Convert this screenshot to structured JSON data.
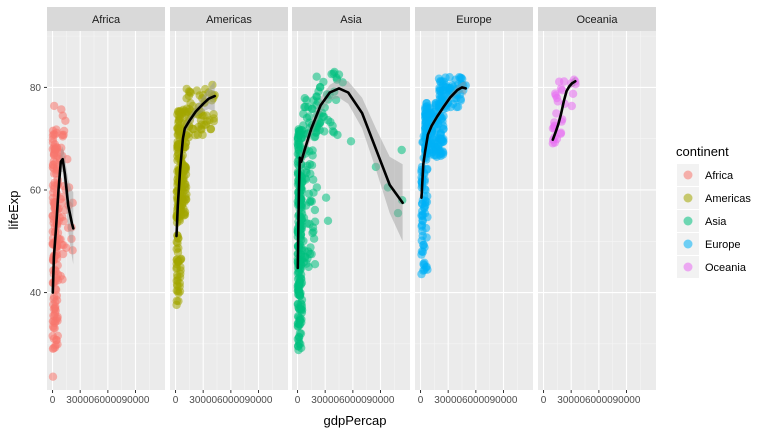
{
  "chart_data": {
    "type": "scatter",
    "title": "",
    "xlabel": "gdpPercap",
    "ylabel": "lifeExp",
    "xlim": [
      -6000,
      122000
    ],
    "ylim": [
      21,
      91
    ],
    "x_ticks": [
      0,
      30000,
      60000,
      90000
    ],
    "x_tick_labels": [
      "0",
      "30000",
      "60000",
      "90000"
    ],
    "y_ticks": [
      40,
      60,
      80
    ],
    "y_tick_labels": [
      "40",
      "60",
      "80"
    ],
    "grid": true,
    "legend": {
      "title": "continent",
      "placement": "right"
    },
    "facets": [
      {
        "name": "Africa",
        "color": "#F8766D",
        "clusters": [
          {
            "x": [
              200,
              6000
            ],
            "y": [
              29,
              72
            ],
            "n": 130
          },
          {
            "x": [
              4000,
              12000
            ],
            "y": [
              42,
              76
            ],
            "n": 30
          },
          {
            "x": [
              8000,
              22000
            ],
            "y": [
              47,
              73
            ],
            "n": 18
          }
        ],
        "extra_points": [
          [
            500,
            23.6
          ],
          [
            21900,
            57.5
          ],
          [
            20600,
            52.7
          ],
          [
            12500,
            71.5
          ],
          [
            14000,
            73.5
          ],
          [
            1800,
            76.4
          ],
          [
            16000,
            66
          ],
          [
            18000,
            60.5
          ]
        ],
        "smooth": [
          [
            300,
            40
          ],
          [
            1500,
            47
          ],
          [
            4000,
            53
          ],
          [
            6500,
            60
          ],
          [
            9000,
            65.5
          ],
          [
            11000,
            66
          ],
          [
            13500,
            63
          ],
          [
            17000,
            57
          ],
          [
            21000,
            53.5
          ],
          [
            22500,
            52.5
          ]
        ],
        "band": [
          [
            300,
            36,
            44
          ],
          [
            1500,
            45.5,
            48.5
          ],
          [
            4000,
            51.5,
            54.5
          ],
          [
            6500,
            58,
            62
          ],
          [
            9000,
            63.5,
            67.5
          ],
          [
            11000,
            63.5,
            68.5
          ],
          [
            13500,
            59.5,
            66.5
          ],
          [
            17000,
            52,
            62
          ],
          [
            21000,
            47,
            60
          ],
          [
            22500,
            45.5,
            59.5
          ]
        ]
      },
      {
        "name": "Americas",
        "color": "#A3A500",
        "clusters": [
          {
            "x": [
              1200,
              6000
            ],
            "y": [
              38,
              60
            ],
            "n": 60
          },
          {
            "x": [
              2000,
              12000
            ],
            "y": [
              55,
              76
            ],
            "n": 150
          },
          {
            "x": [
              12000,
              42000
            ],
            "y": [
              70,
              80
            ],
            "n": 60
          }
        ],
        "extra_points": [
          [
            1200,
            37.6
          ],
          [
            42500,
            78.5
          ],
          [
            40000,
            80.5
          ],
          [
            36000,
            79
          ],
          [
            30000,
            78.5
          ],
          [
            5000,
            43
          ],
          [
            3000,
            46
          ]
        ],
        "smooth": [
          [
            1000,
            51
          ],
          [
            2500,
            57
          ],
          [
            5000,
            64
          ],
          [
            8000,
            70
          ],
          [
            10000,
            72
          ],
          [
            15000,
            73.5
          ],
          [
            22000,
            75.3
          ],
          [
            30000,
            76.8
          ],
          [
            36000,
            77.8
          ],
          [
            42500,
            78.3
          ]
        ],
        "band": [
          [
            1000,
            49,
            53
          ],
          [
            2500,
            55.5,
            58.5
          ],
          [
            5000,
            63,
            65
          ],
          [
            8000,
            69,
            71
          ],
          [
            10000,
            71,
            73
          ],
          [
            15000,
            72.5,
            74.5
          ],
          [
            22000,
            74.3,
            76.3
          ],
          [
            30000,
            75.3,
            78.3
          ],
          [
            36000,
            75.8,
            79.8
          ],
          [
            42500,
            75.3,
            81.3
          ]
        ]
      },
      {
        "name": "Asia",
        "color": "#00BF7D",
        "clusters": [
          {
            "x": [
              300,
              5000
            ],
            "y": [
              29,
              72
            ],
            "n": 190
          },
          {
            "x": [
              3000,
              20000
            ],
            "y": [
              45,
              78
            ],
            "n": 80
          },
          {
            "x": [
              20000,
              45000
            ],
            "y": [
              70,
              83
            ],
            "n": 40
          }
        ],
        "extra_points": [
          [
            113000,
            67.8
          ],
          [
            109000,
            55.5
          ],
          [
            113500,
            58
          ],
          [
            98000,
            60.5
          ],
          [
            85000,
            64.5
          ],
          [
            58000,
            69.5
          ],
          [
            33000,
            54
          ],
          [
            31000,
            58.5
          ],
          [
            21000,
            60.5
          ],
          [
            17000,
            62
          ],
          [
            18000,
            50.5
          ],
          [
            8000,
            47
          ],
          [
            12000,
            45
          ],
          [
            1000,
            28.8
          ],
          [
            1500,
            30.5
          ],
          [
            45000,
            82.5
          ],
          [
            40000,
            83
          ],
          [
            37000,
            82.6
          ],
          [
            49000,
            81
          ]
        ],
        "smooth": [
          [
            300,
            44.8
          ],
          [
            1500,
            60
          ],
          [
            2500,
            66.3
          ],
          [
            4000,
            65.5
          ],
          [
            8000,
            68
          ],
          [
            15000,
            72
          ],
          [
            25000,
            76.5
          ],
          [
            35000,
            79
          ],
          [
            45000,
            79.8
          ],
          [
            55000,
            79
          ],
          [
            70000,
            75
          ],
          [
            85000,
            68
          ],
          [
            100000,
            61
          ],
          [
            114000,
            57.5
          ]
        ],
        "band": [
          [
            300,
            42.5,
            47
          ],
          [
            1500,
            58.5,
            61.5
          ],
          [
            2500,
            65,
            67.6
          ],
          [
            4000,
            64,
            67
          ],
          [
            8000,
            66.5,
            69.5
          ],
          [
            15000,
            70.5,
            73.5
          ],
          [
            25000,
            75,
            78
          ],
          [
            35000,
            77.5,
            80.5
          ],
          [
            45000,
            78,
            81.6
          ],
          [
            55000,
            76.8,
            81.2
          ],
          [
            70000,
            72,
            78
          ],
          [
            85000,
            64,
            72
          ],
          [
            100000,
            55.5,
            66.5
          ],
          [
            114000,
            50,
            65
          ]
        ]
      },
      {
        "name": "Europe",
        "color": "#00B0F6",
        "clusters": [
          {
            "x": [
              1000,
              8000
            ],
            "y": [
              44,
              72
            ],
            "n": 60
          },
          {
            "x": [
              5000,
              25000
            ],
            "y": [
              66,
              77
            ],
            "n": 150
          },
          {
            "x": [
              20000,
              48000
            ],
            "y": [
              76,
              82
            ],
            "n": 70
          }
        ],
        "extra_points": [
          [
            1000,
            43.6
          ],
          [
            1500,
            48
          ],
          [
            2000,
            52
          ],
          [
            1000,
            55
          ],
          [
            2500,
            58
          ],
          [
            45000,
            80.5
          ],
          [
            49000,
            80.4
          ],
          [
            42000,
            82
          ],
          [
            38000,
            81.5
          ]
        ],
        "smooth": [
          [
            1000,
            58.5
          ],
          [
            3000,
            65
          ],
          [
            5000,
            67.5
          ],
          [
            8000,
            70.8
          ],
          [
            12000,
            72.5
          ],
          [
            18000,
            74.3
          ],
          [
            25000,
            76.2
          ],
          [
            32000,
            78
          ],
          [
            40000,
            79.5
          ],
          [
            45000,
            80
          ],
          [
            49000,
            79.8
          ]
        ],
        "band": [
          [
            1000,
            57,
            60
          ],
          [
            3000,
            64,
            66
          ],
          [
            5000,
            66.7,
            68.3
          ],
          [
            8000,
            70.1,
            71.5
          ],
          [
            12000,
            71.8,
            73.2
          ],
          [
            18000,
            73.7,
            74.9
          ],
          [
            25000,
            75.6,
            76.8
          ],
          [
            32000,
            77.3,
            78.7
          ],
          [
            40000,
            78.7,
            80.3
          ],
          [
            45000,
            79,
            81
          ],
          [
            49000,
            78.4,
            81.2
          ]
        ]
      },
      {
        "name": "Oceania",
        "color": "#E76BF3",
        "clusters": [
          {
            "x": [
              10000,
              35000
            ],
            "y": [
              69,
              81.5
            ],
            "n": 24
          }
        ],
        "extra_points": [
          [
            10000,
            69.1
          ],
          [
            10500,
            69.8
          ],
          [
            12000,
            70.3
          ],
          [
            34500,
            81.2
          ],
          [
            33000,
            81.5
          ],
          [
            30000,
            80.8
          ]
        ],
        "smooth": [
          [
            10000,
            69.8
          ],
          [
            13000,
            71.2
          ],
          [
            16000,
            72.8
          ],
          [
            19000,
            74.8
          ],
          [
            22000,
            77.3
          ],
          [
            25000,
            79.3
          ],
          [
            28000,
            80.2
          ],
          [
            31000,
            80.8
          ],
          [
            34500,
            81.2
          ]
        ],
        "band": [
          [
            10000,
            69.2,
            70.4
          ],
          [
            13000,
            70.7,
            71.7
          ],
          [
            16000,
            72.3,
            73.3
          ],
          [
            19000,
            74.3,
            75.3
          ],
          [
            22000,
            76.8,
            77.8
          ],
          [
            25000,
            78.8,
            79.8
          ],
          [
            28000,
            79.7,
            80.7
          ],
          [
            31000,
            80.1,
            81.5
          ],
          [
            34500,
            80.3,
            82.1
          ]
        ]
      }
    ]
  }
}
